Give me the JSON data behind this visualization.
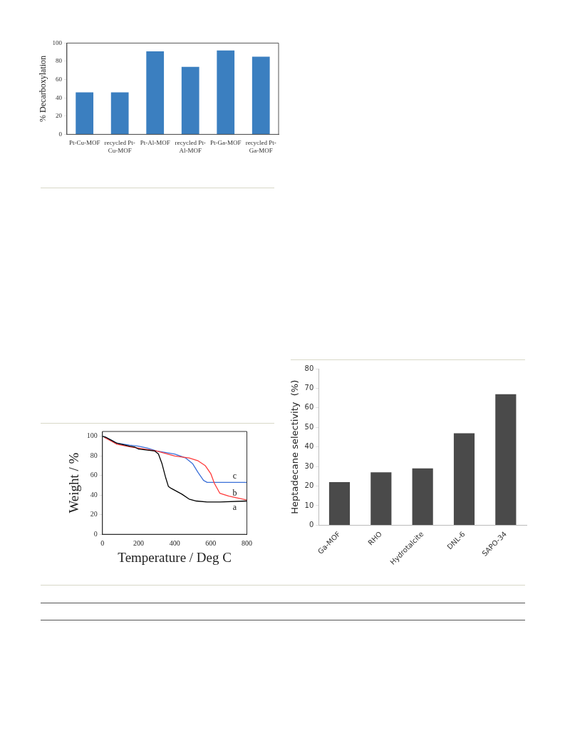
{
  "chart_data": [
    {
      "type": "bar",
      "ylabel": "% Decarboxylation",
      "categories": [
        "Pt-Cu-MOF",
        "recycled Pt-Cu-MOF",
        "Pt-Al-MOF",
        "recycled Pt-Al-MOF",
        "Pt-Ga-MOF",
        "recycled Pt-Ga-MOF"
      ],
      "values": [
        46,
        46,
        91,
        74,
        92,
        85
      ],
      "color": "#3b7fc0",
      "ylim": [
        0,
        100
      ],
      "yticks": [
        0,
        20,
        40,
        60,
        80,
        100
      ]
    },
    {
      "type": "line",
      "xlabel": "Temperature / Deg C",
      "ylabel": "Weight / %",
      "xlim": [
        0,
        800
      ],
      "xticks": [
        0,
        200,
        400,
        600,
        800
      ],
      "ylim": [
        0,
        105
      ],
      "yticks": [
        0,
        20,
        40,
        60,
        80,
        100
      ],
      "marker": "none",
      "line_style": "solid",
      "series": [
        {
          "name": "a",
          "color": "#000000",
          "x": [
            0,
            20,
            50,
            80,
            150,
            180,
            200,
            250,
            290,
            310,
            330,
            350,
            365,
            380,
            420,
            440,
            480,
            520,
            580,
            650,
            800
          ],
          "values": [
            100,
            99,
            96,
            93,
            90,
            89,
            87,
            86,
            85,
            82,
            72,
            58,
            49,
            47,
            43,
            41,
            36,
            34,
            33,
            33,
            34
          ]
        },
        {
          "name": "b",
          "color": "#ff3a3a",
          "x": [
            10,
            50,
            80,
            150,
            200,
            300,
            400,
            480,
            530,
            570,
            600,
            620,
            650,
            700,
            800
          ],
          "values": [
            99,
            95,
            92,
            89.5,
            88,
            85,
            80,
            78,
            75,
            70,
            62,
            52,
            42,
            39,
            35
          ]
        },
        {
          "name": "c",
          "color": "#3a6fd8",
          "x": [
            5,
            50,
            80,
            150,
            200,
            250,
            300,
            400,
            460,
            500,
            530,
            560,
            580,
            650,
            800
          ],
          "values": [
            100,
            96,
            93,
            91,
            90,
            88,
            85,
            82,
            78,
            72,
            63,
            55,
            53,
            53,
            53
          ]
        }
      ]
    },
    {
      "type": "bar",
      "ylabel": "Heptadecane selectivity  (%)",
      "categories": [
        "Ga-MOF",
        "RHO",
        "Hydrotalcite",
        "DNL-6",
        "SAPO-34"
      ],
      "values": [
        22,
        27,
        29,
        47,
        67
      ],
      "color": "#4a4a4a",
      "ylim": [
        0,
        80
      ],
      "yticks": [
        0,
        10,
        20,
        30,
        40,
        50,
        60,
        70,
        80
      ]
    }
  ]
}
